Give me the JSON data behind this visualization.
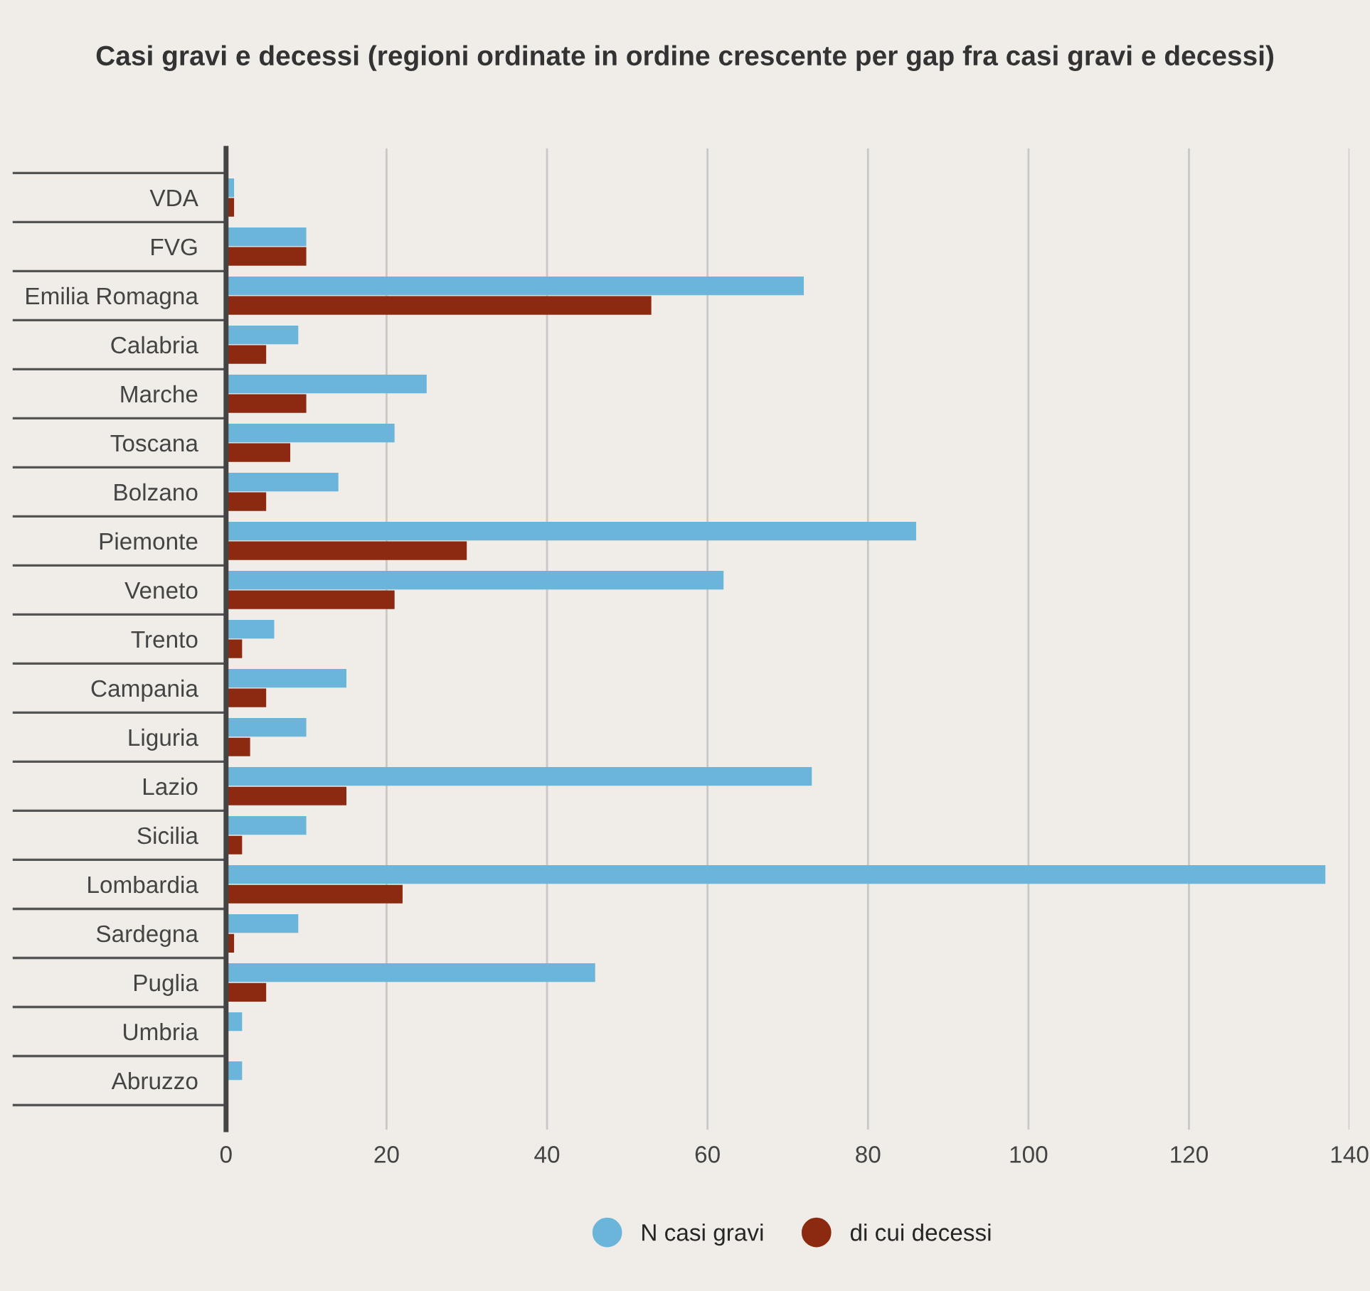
{
  "chart_data": {
    "type": "bar",
    "orientation": "horizontal",
    "title": "Casi gravi e decessi (regioni ordinate in ordine crescente per gap fra casi gravi e decessi)",
    "categories": [
      "VDA",
      "FVG",
      "Emilia Romagna",
      "Calabria",
      "Marche",
      "Toscana",
      "Bolzano",
      "Piemonte",
      "Veneto",
      "Trento",
      "Campania",
      "Liguria",
      "Lazio",
      "Sicilia",
      "Lombardia",
      "Sardegna",
      "Puglia",
      "Umbria",
      "Abruzzo"
    ],
    "series": [
      {
        "name": "N casi gravi",
        "color": "#6bb5db",
        "values": [
          1,
          10,
          72,
          9,
          25,
          21,
          14,
          86,
          62,
          6,
          15,
          10,
          73,
          10,
          137,
          9,
          46,
          2,
          2
        ]
      },
      {
        "name": "di cui decessi",
        "color": "#8b2a10",
        "values": [
          1,
          10,
          53,
          5,
          10,
          8,
          5,
          30,
          21,
          2,
          5,
          3,
          15,
          2,
          22,
          1,
          5,
          null,
          null
        ]
      }
    ],
    "xlim": [
      0,
      140
    ],
    "xticks": [
      0,
      20,
      40,
      60,
      80,
      100,
      120,
      140
    ],
    "grid": "x",
    "legend": "bottom"
  }
}
